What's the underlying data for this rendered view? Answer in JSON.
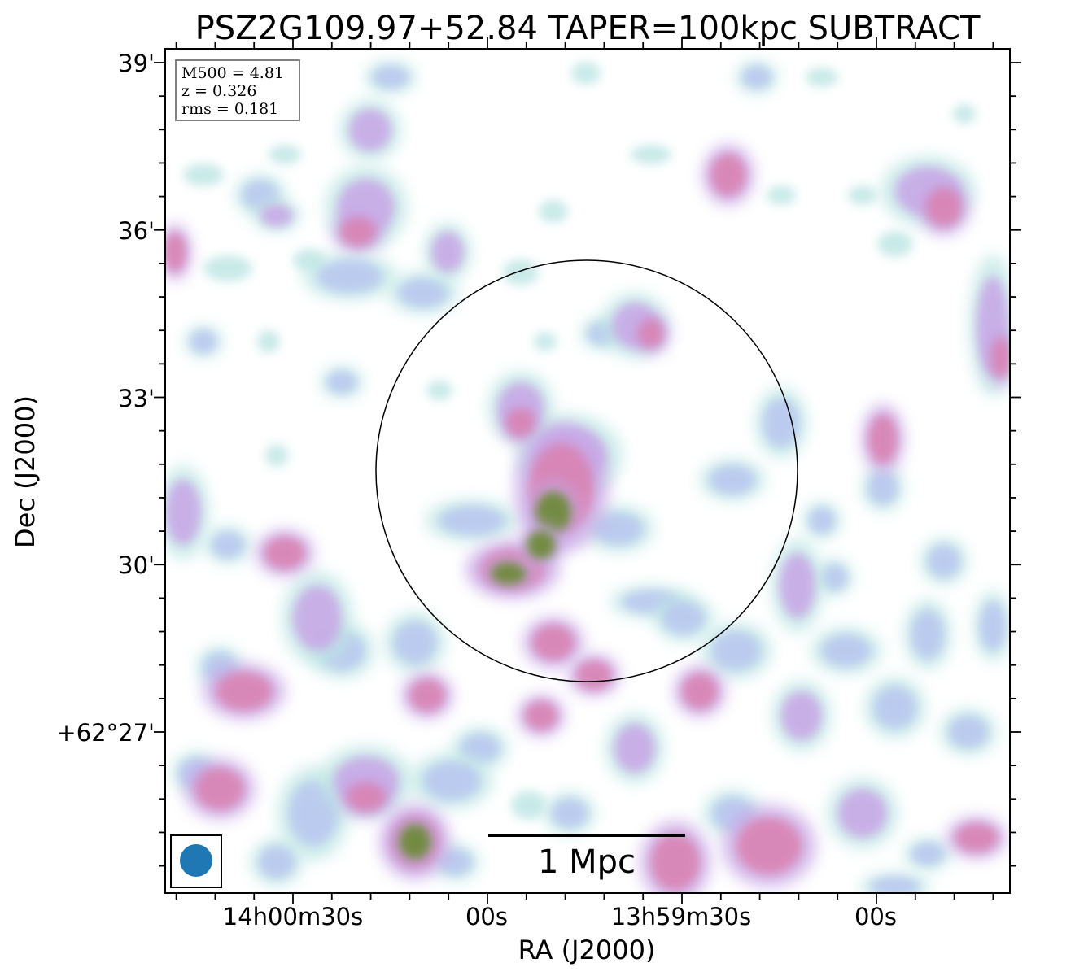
{
  "chart_data": {
    "type": "heatmap",
    "title": "PSZ2G109.97+52.84 TAPER=100kpc SUBTRACT",
    "xlabel": "RA (J2000)",
    "ylabel": "Dec (J2000)",
    "x_ticks": [
      "14h00m30s",
      "00s",
      "13h59m30s",
      "00s"
    ],
    "y_ticks": [
      "39'",
      "36'",
      "33'",
      "30'",
      "+62°27'"
    ],
    "info_box": {
      "line1": "M500 = 4.81",
      "line2": "z = 0.326",
      "line3": "rms = 0.181"
    },
    "scalebar_label": "1 Mpc",
    "colors": {
      "faint": "#bfe6e4",
      "low": "#b8c6f0",
      "mid": "#c7a6e6",
      "high": "#d983b3",
      "peak": "#6e8a3a",
      "beam": "#1f77b4"
    },
    "features": "diffuse emission with central bright cluster core inside R500 circle; bright compact source at lower left"
  }
}
